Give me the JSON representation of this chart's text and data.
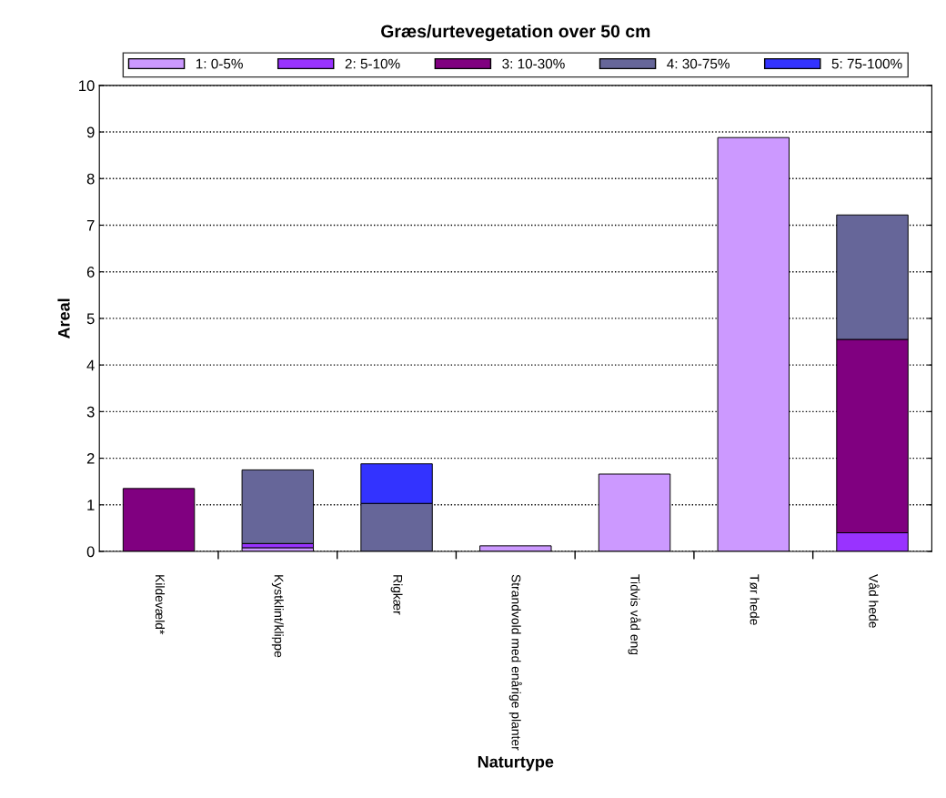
{
  "chart_data": {
    "type": "bar",
    "title": "Græs/urtevegetation over 50 cm",
    "xlabel": "Naturtype",
    "ylabel": "Areal",
    "categories": [
      "Kildevæld*",
      "Kystklint/klippe",
      "Rigkær",
      "Strandvold med enårige planter",
      "Tidvis våd eng",
      "Tør hede",
      "Våd hede"
    ],
    "stacked": true,
    "series": [
      {
        "name": "1: 0-5%",
        "color": "#cc99ff",
        "values": [
          0,
          0.08,
          0,
          0.12,
          1.66,
          8.88,
          0
        ]
      },
      {
        "name": "2: 5-10%",
        "color": "#9933ff",
        "values": [
          0,
          0.09,
          0,
          0,
          0,
          0,
          0.4
        ]
      },
      {
        "name": "3: 10-30%",
        "color": "#800080",
        "values": [
          1.35,
          0,
          0,
          0,
          0,
          0,
          4.15
        ]
      },
      {
        "name": "4: 30-75%",
        "color": "#666699",
        "values": [
          0,
          1.58,
          1.03,
          0,
          0,
          0,
          2.67
        ]
      },
      {
        "name": "5: 75-100%",
        "color": "#3333ff",
        "values": [
          0,
          0,
          0.85,
          0,
          0,
          0,
          0
        ]
      }
    ],
    "ylim": [
      0,
      10
    ],
    "yticks": [
      0,
      1,
      2,
      3,
      4,
      5,
      6,
      7,
      8,
      9,
      10
    ],
    "grid": "y",
    "legend": "top"
  }
}
